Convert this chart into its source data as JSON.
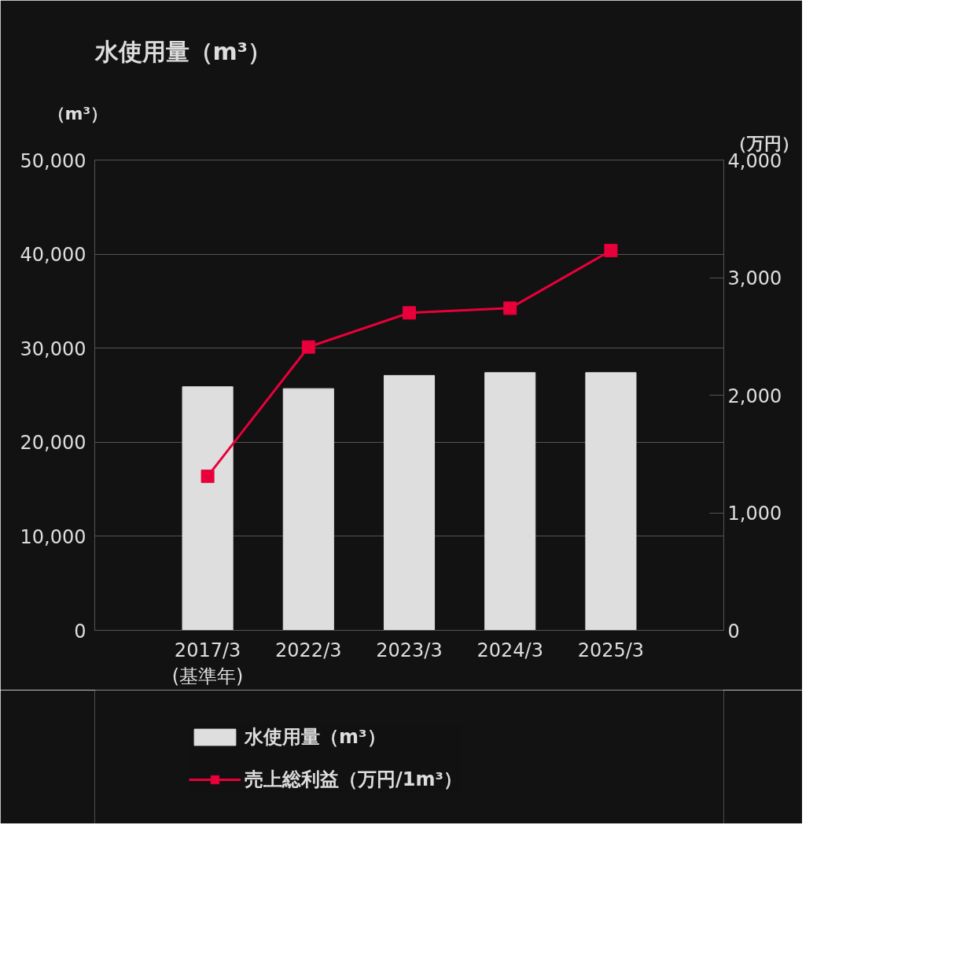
{
  "chart_data": {
    "type": "bar",
    "title": "水使用量（m³）",
    "ylabel": "（m³）",
    "y2label": "（万円）",
    "categories": [
      "2017/3\n(基準年)",
      "2022/3",
      "2023/3",
      "2024/3",
      "2025/3"
    ],
    "series": [
      {
        "name": "水使用量（m³）",
        "color": "#dedede",
        "values": [
          25900,
          25700,
          27100,
          27400,
          27400
        ]
      },
      {
        "name": "売上総利益（万円/1m³）",
        "type": "line",
        "axis": "y2",
        "color": "#e8003a",
        "marker": "square",
        "values": [
          1310,
          2410,
          2700,
          2740,
          3230
        ]
      }
    ],
    "ylim": [
      0,
      50000
    ],
    "yticks": [
      {
        "value": 0,
        "label": "0"
      },
      {
        "value": 10000,
        "label": "10,000"
      },
      {
        "value": 20000,
        "label": "20,000"
      },
      {
        "value": 30000,
        "label": "30,000"
      },
      {
        "value": 40000,
        "label": "40,000"
      },
      {
        "value": 50000,
        "label": "50,000"
      }
    ],
    "y2lim": [
      0,
      4000
    ],
    "y2ticks": [
      {
        "value": 0,
        "label": "0"
      },
      {
        "value": 1000,
        "label": "1,000"
      },
      {
        "value": 2000,
        "label": "2,000"
      },
      {
        "value": 3000,
        "label": "3,000"
      },
      {
        "value": 4000,
        "label": "4,000"
      }
    ],
    "grid": "y",
    "legend": "bottom"
  }
}
